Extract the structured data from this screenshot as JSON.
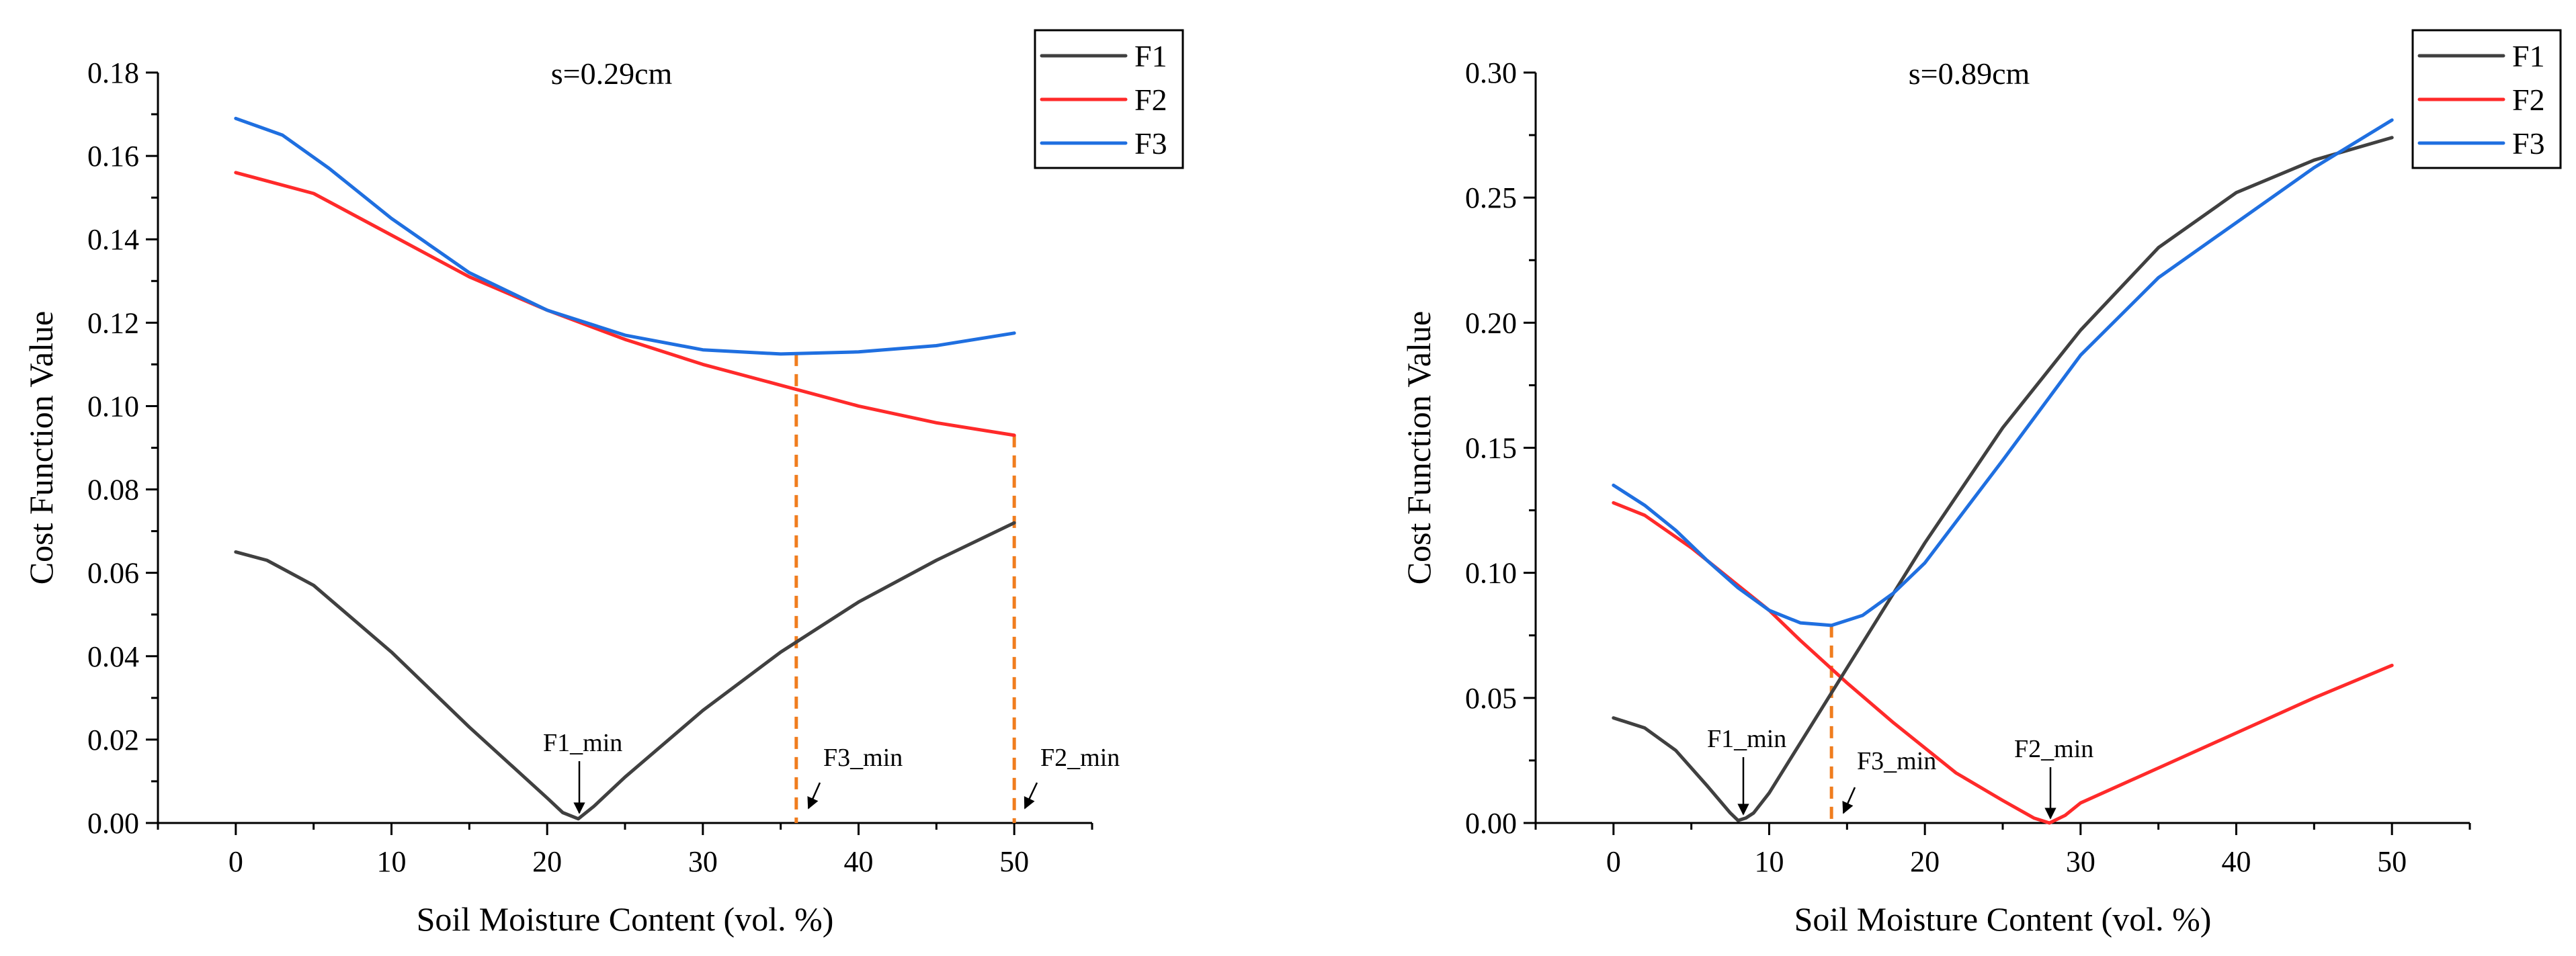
{
  "colors": {
    "F1": "#404040",
    "F2": "#ff2a2a",
    "F3": "#1f6fe0",
    "guide": "#f07d1e"
  },
  "chart_data": [
    {
      "type": "line",
      "title": "s=0.29cm",
      "xlabel": "Soil Moisture Content (vol. %)",
      "ylabel": "Cost Function Value",
      "xlim": [
        -5,
        55
      ],
      "ylim": [
        0,
        0.18
      ],
      "xticks": [
        0,
        10,
        20,
        30,
        40,
        50
      ],
      "yticks": [
        0.0,
        0.02,
        0.04,
        0.06,
        0.08,
        0.1,
        0.12,
        0.14,
        0.16,
        0.18
      ],
      "xtick_labels": [
        "0",
        "10",
        "20",
        "30",
        "40",
        "50"
      ],
      "ytick_labels": [
        "0.00",
        "0.02",
        "0.04",
        "0.06",
        "0.08",
        "0.10",
        "0.12",
        "0.14",
        "0.16",
        "0.18"
      ],
      "legend": [
        "F1",
        "F2",
        "F3"
      ],
      "series": [
        {
          "name": "F1",
          "x": [
            0,
            2,
            5,
            10,
            15,
            20,
            21,
            22,
            23,
            25,
            30,
            35,
            40,
            45,
            50
          ],
          "y": [
            0.065,
            0.063,
            0.057,
            0.041,
            0.023,
            0.006,
            0.0025,
            0.001,
            0.004,
            0.011,
            0.027,
            0.041,
            0.053,
            0.063,
            0.072
          ]
        },
        {
          "name": "F2",
          "x": [
            0,
            5,
            10,
            15,
            20,
            25,
            30,
            35,
            40,
            45,
            50
          ],
          "y": [
            0.156,
            0.151,
            0.141,
            0.131,
            0.123,
            0.116,
            0.11,
            0.105,
            0.1,
            0.096,
            0.093
          ]
        },
        {
          "name": "F3",
          "x": [
            0,
            3,
            6,
            10,
            15,
            20,
            25,
            30,
            35,
            40,
            45,
            50
          ],
          "y": [
            0.169,
            0.165,
            0.157,
            0.145,
            0.132,
            0.123,
            0.117,
            0.1135,
            0.1125,
            0.113,
            0.1145,
            0.1175
          ]
        }
      ],
      "guides": [
        {
          "x": 36,
          "y_top": 0.1125
        },
        {
          "x": 50,
          "y_top": 0.093
        }
      ],
      "annotations": [
        {
          "text": "F1_min",
          "x": 22,
          "y": 0.001
        },
        {
          "text": "F3_min",
          "x": 36,
          "y": 0
        },
        {
          "text": "F2_min",
          "x": 50,
          "y": 0
        }
      ]
    },
    {
      "type": "line",
      "title": "s=0.89cm",
      "xlabel": "Soil Moisture Content (vol. %)",
      "ylabel": "Cost Function Value",
      "xlim": [
        -5,
        55
      ],
      "ylim": [
        0,
        0.3
      ],
      "xticks": [
        0,
        10,
        20,
        30,
        40,
        50
      ],
      "yticks": [
        0.0,
        0.05,
        0.1,
        0.15,
        0.2,
        0.25,
        0.3
      ],
      "xtick_labels": [
        "0",
        "10",
        "20",
        "30",
        "40",
        "50"
      ],
      "ytick_labels": [
        "0.00",
        "0.05",
        "0.10",
        "0.15",
        "0.20",
        "0.25",
        "0.30"
      ],
      "legend": [
        "F1",
        "F2",
        "F3"
      ],
      "series": [
        {
          "name": "F1",
          "x": [
            0,
            2,
            4,
            6,
            7.5,
            8,
            8.5,
            9,
            10,
            12,
            15,
            20,
            25,
            30,
            35,
            40,
            45,
            50
          ],
          "y": [
            0.042,
            0.038,
            0.029,
            0.015,
            0.004,
            0.001,
            0.002,
            0.004,
            0.012,
            0.032,
            0.062,
            0.112,
            0.158,
            0.197,
            0.23,
            0.252,
            0.265,
            0.274
          ]
        },
        {
          "name": "F2",
          "x": [
            0,
            2,
            5,
            8,
            10,
            12,
            15,
            18,
            20,
            22,
            25,
            27,
            28,
            29,
            30,
            35,
            40,
            45,
            50
          ],
          "y": [
            0.128,
            0.123,
            0.11,
            0.095,
            0.085,
            0.073,
            0.056,
            0.04,
            0.03,
            0.02,
            0.009,
            0.002,
            0.0,
            0.003,
            0.008,
            0.022,
            0.036,
            0.05,
            0.063
          ]
        },
        {
          "name": "F3",
          "x": [
            0,
            2,
            4,
            6,
            8,
            10,
            12,
            14,
            16,
            18,
            20,
            25,
            30,
            35,
            40,
            45,
            50
          ],
          "y": [
            0.135,
            0.127,
            0.117,
            0.105,
            0.094,
            0.085,
            0.08,
            0.079,
            0.083,
            0.092,
            0.104,
            0.145,
            0.187,
            0.218,
            0.24,
            0.262,
            0.281
          ]
        }
      ],
      "guides": [
        {
          "x": 14,
          "y_top": 0.079
        }
      ],
      "annotations": [
        {
          "text": "F1_min",
          "x": 8,
          "y": 0.001
        },
        {
          "text": "F3_min",
          "x": 14,
          "y": 0
        },
        {
          "text": "F2_min",
          "x": 28,
          "y": 0
        }
      ]
    }
  ]
}
